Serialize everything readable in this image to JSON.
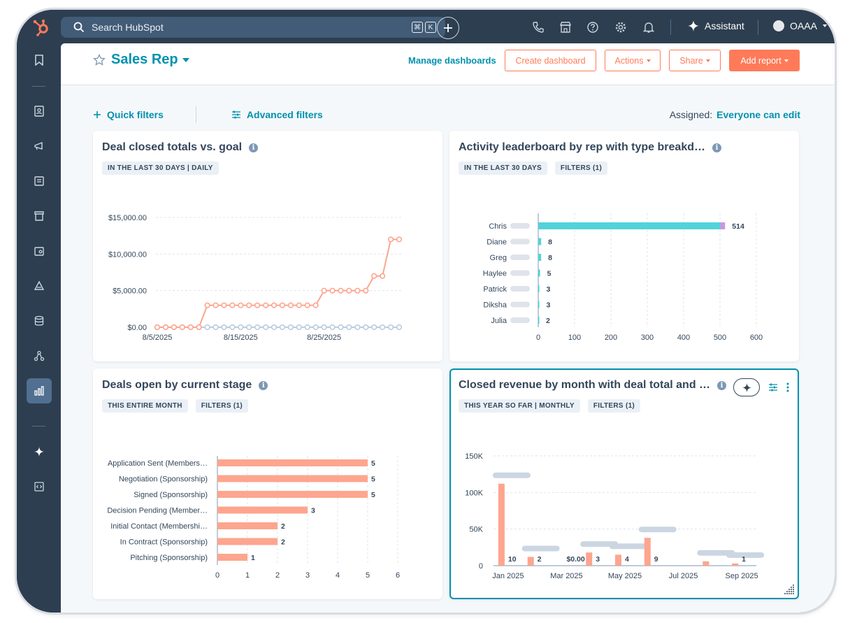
{
  "topbar": {
    "search_placeholder": "Search HubSpot",
    "kbd_keys": [
      "⌘",
      "K"
    ],
    "assistant_label": "Assistant",
    "account_label": "OAAA"
  },
  "leftnav": {
    "items": [
      "bookmark-icon",
      "contacts-icon",
      "marketing-icon",
      "content-icon",
      "commerce-icon",
      "service-icon",
      "sales-icon",
      "data-icon",
      "automation-icon",
      "reporting-icon",
      "ai-sparkle-icon",
      "developer-icon"
    ],
    "active": "reporting-icon"
  },
  "header": {
    "title": "Sales Rep",
    "manage_label": "Manage dashboards",
    "create_label": "Create dashboard",
    "actions_label": "Actions",
    "share_label": "Share",
    "add_report_label": "Add report"
  },
  "filters": {
    "quick_label": "Quick filters",
    "advanced_label": "Advanced filters",
    "assigned_label": "Assigned:",
    "assigned_value": "Everyone can edit"
  },
  "colors": {
    "accent": "#0091ae",
    "orange": "#ff7a59",
    "salmon": "#fea58e",
    "teal_bar": "#51d3d9",
    "lavender": "#c29be1",
    "goal_line": "#b9cde0"
  },
  "cards": [
    {
      "title": "Deal closed totals vs. goal",
      "tags": [
        "IN THE LAST 30 DAYS | DAILY"
      ]
    },
    {
      "title": "Activity leaderboard by rep with type breakd…",
      "tags": [
        "IN THE LAST 30 DAYS",
        "FILTERS (1)"
      ]
    },
    {
      "title": "Deals open by current stage",
      "tags": [
        "THIS ENTIRE MONTH",
        "FILTERS (1)"
      ]
    },
    {
      "title": "Closed revenue by month with deal total and …",
      "tags": [
        "THIS YEAR SO FAR | MONTHLY",
        "FILTERS (1)"
      ]
    }
  ],
  "chart_data": [
    {
      "type": "line",
      "x": [
        "8/5/2025",
        "8/6/2025",
        "8/7/2025",
        "8/8/2025",
        "8/9/2025",
        "8/10/2025",
        "8/11/2025",
        "8/12/2025",
        "8/13/2025",
        "8/14/2025",
        "8/15/2025",
        "8/16/2025",
        "8/17/2025",
        "8/18/2025",
        "8/19/2025",
        "8/20/2025",
        "8/21/2025",
        "8/22/2025",
        "8/23/2025",
        "8/24/2025",
        "8/25/2025",
        "8/26/2025",
        "8/27/2025",
        "8/28/2025",
        "8/29/2025",
        "8/30/2025",
        "8/31/2025",
        "9/1/2025",
        "9/2/2025",
        "9/3/2025"
      ],
      "xticks": [
        "8/5/2025",
        "8/15/2025",
        "8/25/2025"
      ],
      "yticks": [
        "$0.00",
        "$5,000.00",
        "$10,000.00",
        "$15,000.00"
      ],
      "ylim": [
        0,
        15000
      ],
      "series": [
        {
          "values": [
            0,
            0,
            0,
            0,
            0,
            0,
            3000,
            3000,
            3000,
            3000,
            3000,
            3000,
            3000,
            3000,
            3000,
            3000,
            3000,
            3000,
            3000,
            3000,
            5000,
            5000,
            5000,
            5000,
            5000,
            5000,
            7000,
            7000,
            12000,
            12000
          ]
        },
        {
          "values": [
            0,
            0,
            0,
            0,
            0,
            0,
            0,
            0,
            0,
            0,
            0,
            0,
            0,
            0,
            0,
            0,
            0,
            0,
            0,
            0,
            0,
            0,
            0,
            0,
            0,
            0,
            0,
            0,
            0,
            0
          ]
        }
      ],
      "grid": true
    },
    {
      "type": "bar",
      "orientation": "horizontal",
      "categories": [
        "Chris",
        "Diane",
        "Greg",
        "Haylee",
        "Patrick",
        "Diksha",
        "Julia"
      ],
      "values": [
        514,
        8,
        8,
        5,
        3,
        3,
        2
      ],
      "segments": [
        [
          500,
          14
        ],
        [
          8,
          0
        ],
        [
          8,
          0
        ],
        [
          5,
          0
        ],
        [
          3,
          0
        ],
        [
          3,
          0
        ],
        [
          2,
          0
        ]
      ],
      "xticks": [
        "0",
        "100",
        "200",
        "300",
        "400",
        "500",
        "600"
      ],
      "xlim": [
        0,
        600
      ],
      "grid": true
    },
    {
      "type": "bar",
      "orientation": "horizontal",
      "categories": [
        "Application Sent (Members…",
        "Negotiation (Sponsorship)",
        "Signed (Sponsorship)",
        "Decision Pending (Member…",
        "Initial Contact (Membershi…",
        "In Contract (Sponsorship)",
        "Pitching (Sponsorship)"
      ],
      "values": [
        5,
        5,
        5,
        3,
        2,
        2,
        1
      ],
      "xticks": [
        "0",
        "1",
        "2",
        "3",
        "4",
        "5",
        "6"
      ],
      "xlim": [
        0,
        6
      ],
      "grid": true
    },
    {
      "type": "bar",
      "months": [
        "Jan 2025",
        "Feb 2025",
        "Mar 2025",
        "Apr 2025",
        "May 2025",
        "Jun 2025",
        "Jul 2025",
        "Aug 2025",
        "Sep 2025"
      ],
      "xticks": [
        "Jan 2025",
        "Mar 2025",
        "May 2025",
        "Jul 2025",
        "Sep 2025"
      ],
      "values": [
        112000,
        12000,
        0,
        18000,
        15000,
        38000,
        0,
        6000,
        3000
      ],
      "data_labels": [
        "10",
        "2",
        "$0.00",
        "3",
        "4",
        "9",
        "",
        "",
        "1"
      ],
      "yticks": [
        "0",
        "50K",
        "100K",
        "150K"
      ],
      "ylim": [
        0,
        150000
      ],
      "grid": true
    }
  ]
}
